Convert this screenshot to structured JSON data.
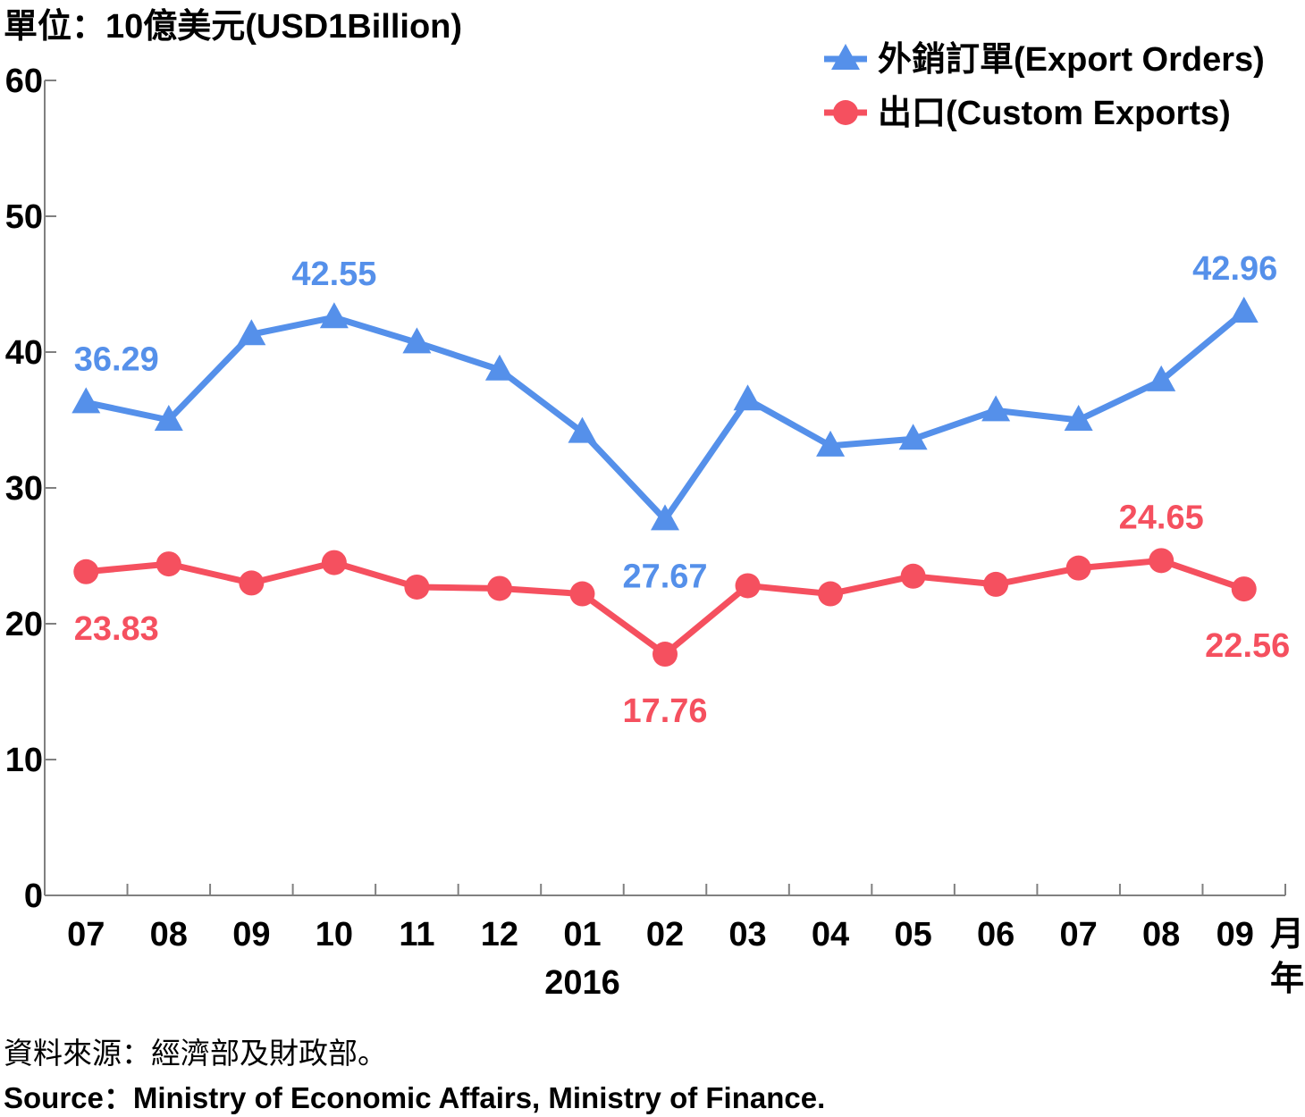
{
  "colors": {
    "orders": "#5590ea",
    "exports": "#f5505f",
    "axis": "#808080"
  },
  "footer": {
    "source_zh": "資料來源：經濟部及財政部。",
    "source_en": "Source：Ministry of Economic Affairs, Ministry of Finance."
  },
  "chart_data": {
    "type": "line",
    "ylabel": "單位：10億美元(USD1Billion)",
    "ylim": [
      0,
      60
    ],
    "yticks": [
      0,
      10,
      20,
      30,
      40,
      50,
      60
    ],
    "categories": [
      "07",
      "08",
      "09",
      "10",
      "11",
      "12",
      "01",
      "02",
      "03",
      "04",
      "05",
      "06",
      "07",
      "08",
      "09"
    ],
    "month_unit": "月",
    "year_label": "2016",
    "year_unit": "年",
    "legend_position": "top-right",
    "series": [
      {
        "name": "外銷訂單(Export Orders)",
        "marker": "triangle",
        "values": [
          36.29,
          35.0,
          41.3,
          42.55,
          40.7,
          38.7,
          34.1,
          27.67,
          36.5,
          33.1,
          33.6,
          35.7,
          35.0,
          37.9,
          42.96
        ],
        "data_labels": [
          {
            "index": 0,
            "text": "36.29",
            "pos": "above"
          },
          {
            "index": 3,
            "text": "42.55",
            "pos": "above"
          },
          {
            "index": 7,
            "text": "27.67",
            "pos": "below"
          },
          {
            "index": 14,
            "text": "42.96",
            "pos": "above"
          }
        ]
      },
      {
        "name": "出口(Custom Exports)",
        "marker": "circle",
        "values": [
          23.83,
          24.4,
          23.0,
          24.5,
          22.7,
          22.6,
          22.2,
          17.76,
          22.8,
          22.2,
          23.5,
          22.9,
          24.1,
          24.65,
          22.56
        ],
        "data_labels": [
          {
            "index": 0,
            "text": "23.83",
            "pos": "below"
          },
          {
            "index": 7,
            "text": "17.76",
            "pos": "below"
          },
          {
            "index": 13,
            "text": "24.65",
            "pos": "above"
          },
          {
            "index": 14,
            "text": "22.56",
            "pos": "below"
          }
        ]
      }
    ]
  }
}
